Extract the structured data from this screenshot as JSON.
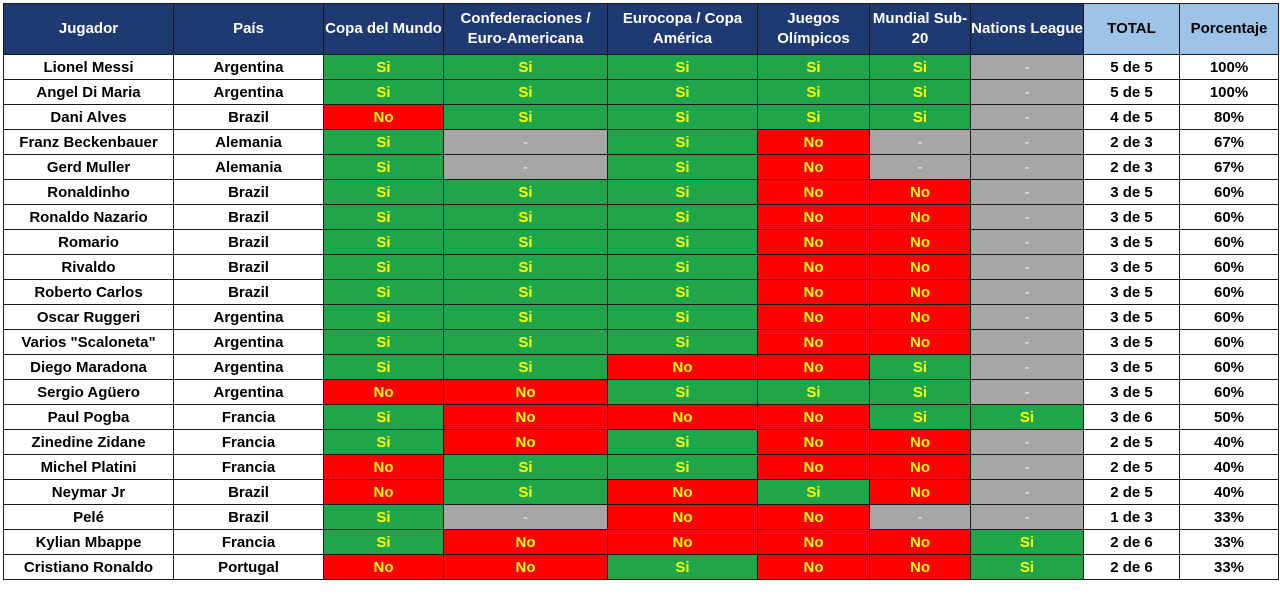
{
  "table": {
    "headers": [
      "Jugador",
      "País",
      "Copa del Mundo",
      "Confederaciones / Euro-Americana",
      "Eurocopa / Copa América",
      "Juegos Olímpicos",
      "Mundial Sub-20",
      "Nations League",
      "TOTAL",
      "Porcentaje"
    ],
    "colors": {
      "header_bg": "#1f3a70",
      "header_highlight_bg": "#9dc3e6",
      "yes_bg": "#1fa64b",
      "no_bg": "#ff0000",
      "na_bg": "#a6a6a6",
      "status_text": "#ffff00"
    },
    "rows": [
      [
        "Lionel Messi",
        "Argentina",
        "Si",
        "Si",
        "Si",
        "Si",
        "Si",
        "-",
        "5 de 5",
        "100%"
      ],
      [
        "Angel Di Maria",
        "Argentina",
        "Si",
        "Si",
        "Si",
        "Si",
        "Si",
        "-",
        "5 de 5",
        "100%"
      ],
      [
        "Dani Alves",
        "Brazil",
        "No",
        "Si",
        "Si",
        "Si",
        "Si",
        "-",
        "4 de 5",
        "80%"
      ],
      [
        "Franz Beckenbauer",
        "Alemania",
        "Si",
        "-",
        "Si",
        "No",
        "-",
        "-",
        "2 de 3",
        "67%"
      ],
      [
        "Gerd Muller",
        "Alemania",
        "Si",
        "-",
        "Si",
        "No",
        "-",
        "-",
        "2 de 3",
        "67%"
      ],
      [
        "Ronaldinho",
        "Brazil",
        "Si",
        "Si",
        "Si",
        "No",
        "No",
        "-",
        "3 de 5",
        "60%"
      ],
      [
        "Ronaldo Nazario",
        "Brazil",
        "Si",
        "Si",
        "Si",
        "No",
        "No",
        "-",
        "3 de 5",
        "60%"
      ],
      [
        "Romario",
        "Brazil",
        "Si",
        "Si",
        "Si",
        "No",
        "No",
        "-",
        "3 de 5",
        "60%"
      ],
      [
        "Rivaldo",
        "Brazil",
        "Si",
        "Si",
        "Si",
        "No",
        "No",
        "-",
        "3 de 5",
        "60%"
      ],
      [
        "Roberto Carlos",
        "Brazil",
        "Si",
        "Si",
        "Si",
        "No",
        "No",
        "-",
        "3 de 5",
        "60%"
      ],
      [
        "Oscar Ruggeri",
        "Argentina",
        "Si",
        "Si",
        "Si",
        "No",
        "No",
        "-",
        "3 de 5",
        "60%"
      ],
      [
        "Varios \"Scaloneta\"",
        "Argentina",
        "Si",
        "Si",
        "Si",
        "No",
        "No",
        "-",
        "3 de 5",
        "60%"
      ],
      [
        "Diego Maradona",
        "Argentina",
        "Si",
        "Si",
        "No",
        "No",
        "Si",
        "-",
        "3 de 5",
        "60%"
      ],
      [
        "Sergio Agüero",
        "Argentina",
        "No",
        "No",
        "Si",
        "Si",
        "Si",
        "-",
        "3 de 5",
        "60%"
      ],
      [
        "Paul Pogba",
        "Francia",
        "Si",
        "No",
        "No",
        "No",
        "Si",
        "Si",
        "3 de 6",
        "50%"
      ],
      [
        "Zinedine Zidane",
        "Francia",
        "Si",
        "No",
        "Si",
        "No",
        "No",
        "-",
        "2 de 5",
        "40%"
      ],
      [
        "Michel Platini",
        "Francia",
        "No",
        "Si",
        "Si",
        "No",
        "No",
        "-",
        "2 de 5",
        "40%"
      ],
      [
        "Neymar Jr",
        "Brazil",
        "No",
        "Si",
        "No",
        "Si",
        "No",
        "-",
        "2 de 5",
        "40%"
      ],
      [
        "Pelé",
        "Brazil",
        "Si",
        "-",
        "No",
        "No",
        "-",
        "-",
        "1 de 3",
        "33%"
      ],
      [
        "Kylian Mbappe",
        "Francia",
        "Si",
        "No",
        "No",
        "No",
        "No",
        "Si",
        "2 de 6",
        "33%"
      ],
      [
        "Cristiano Ronaldo",
        "Portugal",
        "No",
        "No",
        "Si",
        "No",
        "No",
        "Si",
        "2 de 6",
        "33%"
      ]
    ]
  }
}
